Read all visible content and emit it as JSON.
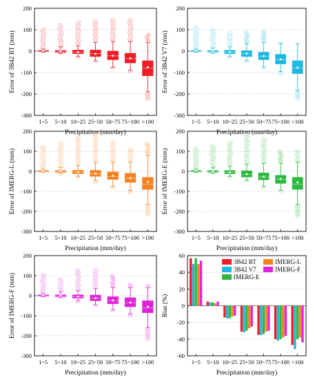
{
  "chart_data": [
    {
      "type": "box",
      "ylabel": "Error of 3B42 RT (mm)",
      "xlabel": "Precipitation (mm/day)",
      "ylim": [
        -300,
        200
      ],
      "yticks": [
        -300,
        -200,
        -100,
        0,
        100,
        200
      ],
      "categories": [
        "1~5",
        "5~10",
        "10~25",
        "25~50",
        "50~75",
        "75~100",
        ">100"
      ],
      "color": "#ee1c25",
      "boxes": [
        {
          "whislo": -5,
          "q1": -2,
          "med": 0,
          "q3": 3,
          "whishi": 10,
          "mean": 1,
          "flier_top": 110,
          "flier_bottom": -8
        },
        {
          "whislo": -12,
          "q1": -6,
          "med": -2,
          "q3": 3,
          "whishi": 20,
          "mean": -1,
          "flier_top": 130,
          "flier_bottom": -15
        },
        {
          "whislo": -25,
          "q1": -12,
          "med": -5,
          "q3": 5,
          "whishi": 25,
          "mean": -5,
          "flier_top": 140,
          "flier_bottom": -30
        },
        {
          "whislo": -45,
          "q1": -25,
          "med": -12,
          "q3": 5,
          "whishi": 40,
          "mean": -13,
          "flier_top": 145,
          "flier_bottom": -50
        },
        {
          "whislo": -75,
          "q1": -40,
          "med": -22,
          "q3": 0,
          "whishi": 45,
          "mean": -22,
          "flier_top": 150,
          "flier_bottom": -85
        },
        {
          "whislo": -90,
          "q1": -55,
          "med": -35,
          "q3": -10,
          "whishi": 45,
          "mean": -34,
          "flier_top": 150,
          "flier_bottom": -100
        },
        {
          "whislo": -190,
          "q1": -115,
          "med": -80,
          "q3": -45,
          "whishi": 40,
          "mean": -75,
          "flier_top": 80,
          "flier_bottom": -230
        }
      ]
    },
    {
      "type": "box",
      "ylabel": "Error of 3B42 V7 (mm)",
      "xlabel": "Precipitation (mm/day)",
      "ylim": [
        -300,
        200
      ],
      "yticks": [
        -300,
        -200,
        -100,
        0,
        100,
        200
      ],
      "categories": [
        "1~5",
        "5~10",
        "10~25",
        "25~50",
        "50~75",
        "75~100",
        ">100"
      ],
      "color": "#1fb8e0",
      "boxes": [
        {
          "whislo": -5,
          "q1": -2,
          "med": 0,
          "q3": 3,
          "whishi": 10,
          "mean": 2,
          "flier_top": 120,
          "flier_bottom": -8
        },
        {
          "whislo": -10,
          "q1": -5,
          "med": -1,
          "q3": 3,
          "whishi": 15,
          "mean": 0,
          "flier_top": 100,
          "flier_bottom": -12
        },
        {
          "whislo": -25,
          "q1": -12,
          "med": -5,
          "q3": 4,
          "whishi": 20,
          "mean": -4,
          "flier_top": 95,
          "flier_bottom": -30
        },
        {
          "whislo": -45,
          "q1": -25,
          "med": -12,
          "q3": 2,
          "whishi": 35,
          "mean": -11,
          "flier_top": 90,
          "flier_bottom": -55
        },
        {
          "whislo": -75,
          "q1": -40,
          "med": -25,
          "q3": -5,
          "whishi": 40,
          "mean": -23,
          "flier_top": 95,
          "flier_bottom": -80
        },
        {
          "whislo": -95,
          "q1": -60,
          "med": -40,
          "q3": -15,
          "whishi": 35,
          "mean": -38,
          "flier_top": 40,
          "flier_bottom": -110
        },
        {
          "whislo": -185,
          "q1": -105,
          "med": -80,
          "q3": -45,
          "whishi": 35,
          "mean": -77,
          "flier_top": 30,
          "flier_bottom": -225
        }
      ]
    },
    {
      "type": "box",
      "ylabel": "Error of IMERG-L (mm)",
      "xlabel": "Precipitation (mm/day)",
      "ylim": [
        -300,
        200
      ],
      "yticks": [
        -300,
        -200,
        -100,
        0,
        100,
        200
      ],
      "categories": [
        "1~5",
        "5~10",
        "10~25",
        "25~50",
        "50~75",
        "75~100",
        ">100"
      ],
      "color": "#f58220",
      "boxes": [
        {
          "whislo": -5,
          "q1": -2,
          "med": 0,
          "q3": 4,
          "whishi": 12,
          "mean": 2,
          "flier_top": 130,
          "flier_bottom": -8
        },
        {
          "whislo": -10,
          "q1": -5,
          "med": -1,
          "q3": 4,
          "whishi": 20,
          "mean": 0,
          "flier_top": 145,
          "flier_bottom": -15
        },
        {
          "whislo": -25,
          "q1": -12,
          "med": -4,
          "q3": 5,
          "whishi": 30,
          "mean": -4,
          "flier_top": 170,
          "flier_bottom": -30
        },
        {
          "whislo": -45,
          "q1": -25,
          "med": -12,
          "q3": 5,
          "whishi": 45,
          "mean": -11,
          "flier_top": 195,
          "flier_bottom": -60
        },
        {
          "whislo": -75,
          "q1": -40,
          "med": -25,
          "q3": -3,
          "whishi": 45,
          "mean": -23,
          "flier_top": 150,
          "flier_bottom": -80
        },
        {
          "whislo": -95,
          "q1": -55,
          "med": -35,
          "q3": -10,
          "whishi": 45,
          "mean": -34,
          "flier_top": 120,
          "flier_bottom": -110
        },
        {
          "whislo": -165,
          "q1": -90,
          "med": -65,
          "q3": -30,
          "whishi": 80,
          "mean": -52,
          "flier_top": 140,
          "flier_bottom": -220
        }
      ]
    },
    {
      "type": "box",
      "ylabel": "Error of IMERG-E (mm)",
      "xlabel": "Precipitation (mm/day)",
      "ylim": [
        -300,
        200
      ],
      "yticks": [
        -300,
        -200,
        -100,
        0,
        100,
        200
      ],
      "categories": [
        "1~5",
        "5~10",
        "10~25",
        "25~50",
        "50~75",
        "75~100",
        ">100"
      ],
      "color": "#2db83d",
      "boxes": [
        {
          "whislo": -5,
          "q1": -2,
          "med": 0,
          "q3": 4,
          "whishi": 12,
          "mean": 3,
          "flier_top": 120,
          "flier_bottom": -8
        },
        {
          "whislo": -10,
          "q1": -5,
          "med": -1,
          "q3": 4,
          "whishi": 18,
          "mean": 0,
          "flier_top": 130,
          "flier_bottom": -12
        },
        {
          "whislo": -25,
          "q1": -12,
          "med": -5,
          "q3": 4,
          "whishi": 25,
          "mean": -5,
          "flier_top": 150,
          "flier_bottom": -30
        },
        {
          "whislo": -45,
          "q1": -28,
          "med": -15,
          "q3": 3,
          "whishi": 35,
          "mean": -14,
          "flier_top": 190,
          "flier_bottom": -55
        },
        {
          "whislo": -75,
          "q1": -42,
          "med": -28,
          "q3": -8,
          "whishi": 40,
          "mean": -26,
          "flier_top": 165,
          "flier_bottom": -85
        },
        {
          "whislo": -95,
          "q1": -60,
          "med": -40,
          "q3": -20,
          "whishi": 40,
          "mean": -38,
          "flier_top": 100,
          "flier_bottom": -105
        },
        {
          "whislo": -165,
          "q1": -90,
          "med": -65,
          "q3": -30,
          "whishi": 45,
          "mean": -55,
          "flier_top": 110,
          "flier_bottom": -230
        }
      ]
    },
    {
      "type": "box",
      "ylabel": "Error of IMERG-F (mm)",
      "xlabel": "Precipitation (mm/day)",
      "ylim": [
        -300,
        200
      ],
      "yticks": [
        -300,
        -200,
        -100,
        0,
        100,
        200
      ],
      "categories": [
        "1~5",
        "5~10",
        "10~25",
        "25~50",
        "50~75",
        "75~100",
        ">100"
      ],
      "color": "#e022d8",
      "boxes": [
        {
          "whislo": -5,
          "q1": -2,
          "med": 0,
          "q3": 4,
          "whishi": 12,
          "mean": 2,
          "flier_top": 110,
          "flier_bottom": -8
        },
        {
          "whislo": -10,
          "q1": -5,
          "med": -1,
          "q3": 4,
          "whishi": 18,
          "mean": 0,
          "flier_top": 90,
          "flier_bottom": -12
        },
        {
          "whislo": -25,
          "q1": -12,
          "med": -5,
          "q3": 4,
          "whishi": 25,
          "mean": -5,
          "flier_top": 130,
          "flier_bottom": -30
        },
        {
          "whislo": -45,
          "q1": -25,
          "med": -12,
          "q3": 3,
          "whishi": 35,
          "mean": -12,
          "flier_top": 135,
          "flier_bottom": -55
        },
        {
          "whislo": -70,
          "q1": -40,
          "med": -25,
          "q3": -5,
          "whishi": 40,
          "mean": -23,
          "flier_top": 100,
          "flier_bottom": -80
        },
        {
          "whislo": -90,
          "q1": -55,
          "med": -35,
          "q3": -10,
          "whishi": 40,
          "mean": -34,
          "flier_top": 60,
          "flier_bottom": -105
        },
        {
          "whislo": -160,
          "q1": -85,
          "med": -60,
          "q3": -25,
          "whishi": 40,
          "mean": -55,
          "flier_top": 55,
          "flier_bottom": -225
        }
      ]
    },
    {
      "type": "bar",
      "ylabel": "Bias (%)",
      "xlabel": "Precipitation (mm/day)",
      "ylim": [
        -60,
        60
      ],
      "yticks": [
        -60,
        -40,
        -20,
        0,
        20,
        40,
        60
      ],
      "categories": [
        "1~5",
        "5~10",
        "10~25",
        "25~50",
        "50~75",
        "75~100",
        ">100"
      ],
      "legend": "top-right",
      "series": [
        {
          "name": "3B42 RT",
          "color": "#ee1c25",
          "values": [
            57,
            5,
            -14,
            -31,
            -35,
            -40,
            -47
          ]
        },
        {
          "name": "3B42 V7",
          "color": "#1fb8e0",
          "values": [
            50,
            4,
            -15,
            -32,
            -35,
            -42,
            -52
          ]
        },
        {
          "name": "IMERG-E",
          "color": "#2db83d",
          "values": [
            57,
            4,
            -15,
            -30,
            -34,
            -40,
            -40
          ]
        },
        {
          "name": "IMERG-L",
          "color": "#f58220",
          "values": [
            50,
            3,
            -13,
            -27,
            -31,
            -38,
            -38
          ]
        },
        {
          "name": "IMERG-F",
          "color": "#e022d8",
          "values": [
            54,
            5,
            -12,
            -25,
            -30,
            -36,
            -44
          ]
        }
      ]
    }
  ]
}
